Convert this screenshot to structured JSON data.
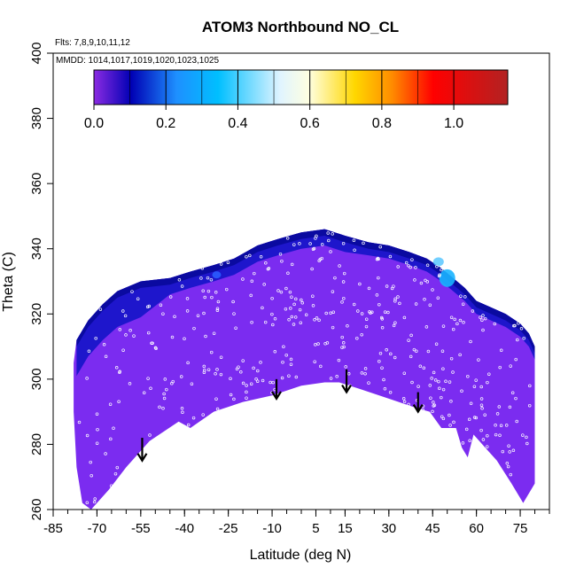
{
  "chart_data": {
    "type": "heatmap",
    "title": "ATOM3 Northbound NO_CL",
    "flights_text": "Flts: 7,8,9,10,11,12",
    "mmdd_text": "MMDD: 1014,1017,1019,1020,1023,1025",
    "xlabel": "Latitude (deg N)",
    "ylabel": "Theta (C)",
    "xlim": [
      -85,
      85
    ],
    "ylim": [
      260,
      400
    ],
    "x_ticks": [
      -85,
      -70,
      -55,
      -40,
      -25,
      -10,
      5,
      15,
      30,
      45,
      60,
      75
    ],
    "y_ticks": [
      260,
      280,
      300,
      320,
      340,
      360,
      380,
      400
    ],
    "colorbar": {
      "min": 0.0,
      "max": 1.15,
      "ticks": [
        "0.0",
        "0.2",
        "0.4",
        "0.6",
        "0.8",
        "1.0"
      ],
      "tick_values": [
        0.0,
        0.2,
        0.4,
        0.6,
        0.8,
        1.0
      ],
      "colors": [
        "#8b2be2",
        "#0000b4",
        "#1e90ff",
        "#00bfff",
        "#e0f4ff",
        "#ffffe0",
        "#ffd700",
        "#ff8c00",
        "#ff0000",
        "#b22222"
      ]
    },
    "field_colors": {
      "main": "#7b2cf0",
      "top_band": "#1414c8",
      "top_edge": "#0a0aa0",
      "cyan_patch": "#19b4ff"
    },
    "top_boundary": [
      [
        -77,
        312
      ],
      [
        -73,
        318
      ],
      [
        -68,
        323
      ],
      [
        -63,
        327
      ],
      [
        -55,
        330
      ],
      [
        -45,
        331
      ],
      [
        -38,
        333
      ],
      [
        -30,
        335
      ],
      [
        -23,
        337
      ],
      [
        -15,
        341
      ],
      [
        -8,
        343
      ],
      [
        0,
        345
      ],
      [
        8,
        346
      ],
      [
        15,
        344
      ],
      [
        23,
        342
      ],
      [
        30,
        341
      ],
      [
        37,
        339
      ],
      [
        43,
        337
      ],
      [
        48,
        334
      ],
      [
        52,
        331
      ],
      [
        56,
        328
      ],
      [
        60,
        324
      ],
      [
        65,
        322
      ],
      [
        70,
        320
      ],
      [
        75,
        317
      ],
      [
        78,
        314
      ],
      [
        80,
        310
      ]
    ],
    "bottom_boundary": [
      [
        80,
        268
      ],
      [
        76,
        262
      ],
      [
        72,
        268
      ],
      [
        67,
        275
      ],
      [
        62,
        280
      ],
      [
        59,
        283
      ],
      [
        57,
        276
      ],
      [
        55,
        279
      ],
      [
        53,
        285
      ],
      [
        48,
        285
      ],
      [
        44,
        290
      ],
      [
        40,
        291
      ],
      [
        30,
        294
      ],
      [
        20,
        297
      ],
      [
        13,
        299
      ],
      [
        8,
        299
      ],
      [
        0,
        298
      ],
      [
        -10,
        295
      ],
      [
        -20,
        293
      ],
      [
        -30,
        290
      ],
      [
        -38,
        285
      ],
      [
        -42,
        287
      ],
      [
        -52,
        281
      ],
      [
        -60,
        273
      ],
      [
        -66,
        266
      ],
      [
        -72,
        260
      ],
      [
        -75,
        262
      ],
      [
        -77,
        273
      ],
      [
        -78,
        290
      ],
      [
        -78,
        305
      ]
    ],
    "arrows": [
      {
        "lat": -54.5,
        "theta_top": 282,
        "theta_tip": 275
      },
      {
        "lat": -8.5,
        "theta_top": 300,
        "theta_tip": 294
      },
      {
        "lat": 15.5,
        "theta_top": 303,
        "theta_tip": 296
      },
      {
        "lat": 40,
        "theta_top": 296,
        "theta_tip": 290
      }
    ]
  }
}
